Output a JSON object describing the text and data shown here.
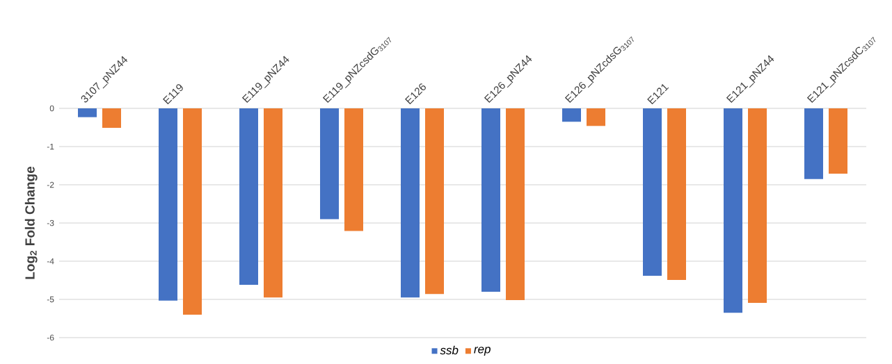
{
  "chart_data": {
    "type": "bar",
    "categories": [
      "3107_pNZ44",
      "E119",
      "E119_pNZ44",
      "E119_pNZcsdG$_{3107}$",
      "E126",
      "E126_pNZ44",
      "E126_pNZcdsG$_{3107}$",
      "E121",
      "E121_pNZ44",
      "E121_pNZcsdC$_{3107}$"
    ],
    "series": [
      {
        "name": "ssb",
        "color": "#4472c4",
        "values": [
          -0.23,
          -5.03,
          -4.62,
          -2.9,
          -4.95,
          -4.8,
          -0.35,
          -4.38,
          -5.35,
          -1.85
        ]
      },
      {
        "name": "rep",
        "color": "#ed7d31",
        "values": [
          -0.51,
          -5.4,
          -4.95,
          -3.21,
          -4.86,
          -5.02,
          -0.46,
          -4.49,
          -5.09,
          -1.71
        ]
      }
    ],
    "ylabel": "Log$_{2}$ Fold Change",
    "ylim": [
      -6,
      0
    ],
    "yticks": [
      -6,
      -5,
      -4,
      -3,
      -2,
      -1,
      0
    ],
    "grid": "y",
    "legend": "bottom"
  }
}
